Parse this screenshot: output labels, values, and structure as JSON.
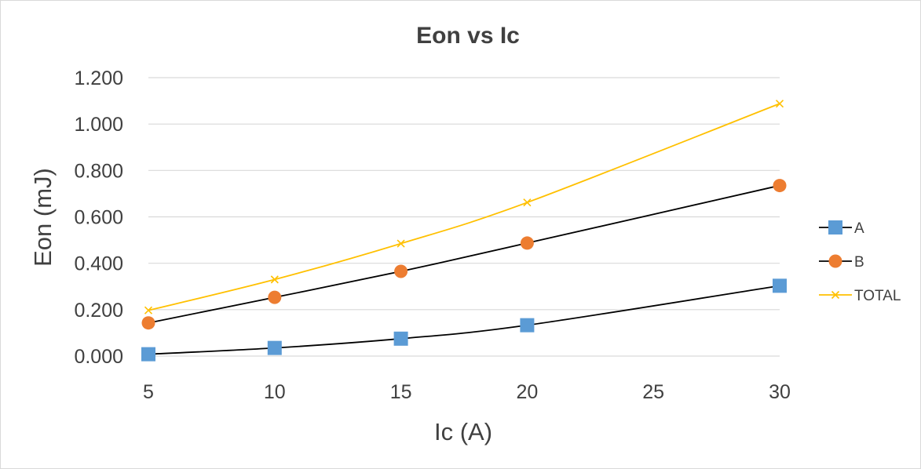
{
  "chart_data": {
    "type": "line",
    "title": "Eon vs Ic",
    "xlabel": "Ic (A)",
    "ylabel": "Eon (mJ)",
    "x": [
      5,
      10,
      15,
      20,
      30
    ],
    "xlim": [
      5,
      30
    ],
    "xticks": [
      "5",
      "10",
      "15",
      "20",
      "25",
      "30"
    ],
    "ylim": [
      0,
      1.2
    ],
    "yticks": [
      "0.000",
      "0.200",
      "0.400",
      "0.600",
      "0.800",
      "1.000",
      "1.200"
    ],
    "grid": "horizontal",
    "legend_position": "right",
    "series": [
      {
        "name": "A",
        "values": [
          0.008,
          0.035,
          0.075,
          0.133,
          0.303
        ],
        "color": "#5b9bd5",
        "line_color": "#000000",
        "marker": "square"
      },
      {
        "name": "B",
        "values": [
          0.143,
          0.253,
          0.365,
          0.487,
          0.735
        ],
        "color": "#ed7d31",
        "line_color": "#000000",
        "marker": "circle"
      },
      {
        "name": "TOTAL",
        "values": [
          0.197,
          0.33,
          0.485,
          0.662,
          1.088
        ],
        "color": "#ffc000",
        "line_color": "#ffc000",
        "marker": "x"
      }
    ]
  }
}
